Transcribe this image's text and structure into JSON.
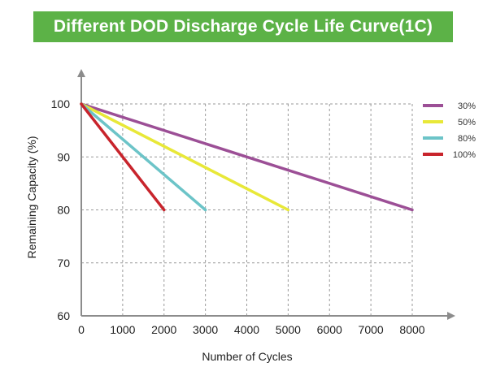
{
  "chart_data": {
    "type": "line",
    "title": "Different DOD Discharge Cycle Life Curve(1C)",
    "xlabel": "Number of Cycles",
    "ylabel": "Remaining Capacity (%)",
    "xlim": [
      0,
      8000
    ],
    "ylim": [
      60,
      100
    ],
    "xticks": [
      0,
      1000,
      2000,
      3000,
      4000,
      5000,
      6000,
      7000,
      8000
    ],
    "yticks": [
      60,
      70,
      80,
      90,
      100
    ],
    "grid": true,
    "legend_position": "top-right",
    "series": [
      {
        "name": "30%",
        "color": "#9c4f96",
        "points": [
          [
            0,
            100
          ],
          [
            8000,
            80
          ]
        ]
      },
      {
        "name": "50%",
        "color": "#e8e838",
        "points": [
          [
            0,
            100
          ],
          [
            5000,
            80
          ]
        ]
      },
      {
        "name": "80%",
        "color": "#6cc4c8",
        "points": [
          [
            0,
            100
          ],
          [
            3000,
            80
          ]
        ]
      },
      {
        "name": "100%",
        "color": "#c8242c",
        "points": [
          [
            0,
            100
          ],
          [
            2000,
            80
          ]
        ]
      }
    ]
  }
}
